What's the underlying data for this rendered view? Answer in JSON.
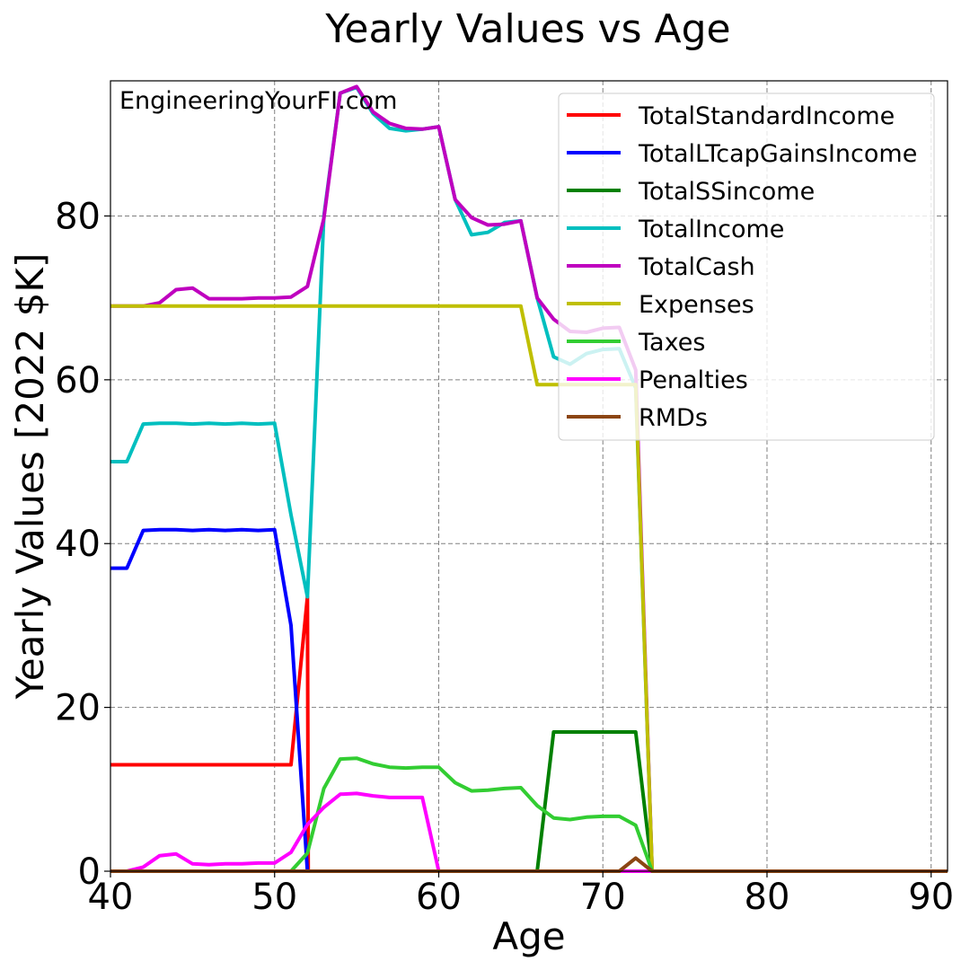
{
  "chart_data": {
    "type": "line",
    "title": "Yearly Values vs Age",
    "xlabel": "Age",
    "ylabel": "Yearly Values [2022 $K]",
    "watermark": "EngineeringYourFI.com",
    "xlim": [
      40,
      91
    ],
    "ylim": [
      0,
      96.5
    ],
    "x_ticks": [
      40,
      50,
      60,
      70,
      80,
      90
    ],
    "y_ticks": [
      0,
      20,
      40,
      60,
      80
    ],
    "grid": true,
    "legend_position": "upper right",
    "series": [
      {
        "name": "TotalStandardIncome",
        "color": "#ff0000",
        "x": [
          40,
          51,
          52,
          52.05,
          91
        ],
        "y": [
          13,
          13,
          33.5,
          0,
          0
        ]
      },
      {
        "name": "TotalLTcapGainsIncome",
        "color": "#0000ff",
        "x": [
          40,
          41,
          42,
          43,
          44,
          45,
          46,
          47,
          48,
          49,
          50,
          51,
          52,
          91
        ],
        "y": [
          37,
          37,
          41.6,
          41.7,
          41.7,
          41.6,
          41.7,
          41.6,
          41.7,
          41.6,
          41.7,
          30,
          0,
          0
        ]
      },
      {
        "name": "TotalSSincome",
        "color": "#008000",
        "x": [
          40,
          66,
          67,
          68,
          69,
          70,
          71,
          72,
          73,
          91
        ],
        "y": [
          0,
          0,
          17,
          17,
          17,
          17,
          17,
          17,
          0,
          0
        ]
      },
      {
        "name": "TotalIncome",
        "color": "#00bfbf",
        "x": [
          40,
          41,
          42,
          43,
          44,
          45,
          46,
          47,
          48,
          49,
          50,
          51,
          52,
          53,
          54,
          55,
          56,
          57,
          58,
          59,
          60,
          61,
          62,
          63,
          64,
          65,
          66,
          67,
          68,
          69,
          70,
          71,
          72,
          73,
          91
        ],
        "y": [
          50,
          50,
          54.6,
          54.7,
          54.7,
          54.6,
          54.7,
          54.6,
          54.7,
          54.6,
          54.7,
          43.5,
          33.5,
          80,
          95,
          95.7,
          92.5,
          90.7,
          90.4,
          90.6,
          90.9,
          82,
          77.7,
          78,
          79.2,
          79.4,
          70,
          62.8,
          61.9,
          63.2,
          63.7,
          63.8,
          59,
          0,
          0
        ]
      },
      {
        "name": "TotalCash",
        "color": "#bf00bf",
        "x": [
          40,
          41,
          42,
          43,
          44,
          45,
          46,
          47,
          48,
          49,
          50,
          51,
          52,
          53,
          54,
          55,
          56,
          57,
          58,
          59,
          60,
          61,
          62,
          63,
          64,
          65,
          66,
          67,
          68,
          69,
          70,
          71,
          72,
          73,
          91
        ],
        "y": [
          69,
          69,
          69,
          69.4,
          71,
          71.2,
          69.9,
          69.9,
          69.9,
          70,
          70,
          70.1,
          71.4,
          79.7,
          95,
          95.8,
          92.7,
          91.3,
          90.7,
          90.6,
          90.9,
          82,
          79.8,
          78.9,
          79,
          79.4,
          70,
          67.4,
          65.9,
          65.8,
          66.3,
          66.4,
          61.2,
          0,
          0
        ]
      },
      {
        "name": "Expenses",
        "color": "#bfbf00",
        "x": [
          40,
          65,
          66,
          72,
          73,
          91
        ],
        "y": [
          69,
          69,
          59.4,
          59.4,
          0,
          0
        ]
      },
      {
        "name": "Taxes",
        "color": "#32cd32",
        "x": [
          40,
          51,
          52,
          53,
          54,
          55,
          56,
          57,
          58,
          59,
          60,
          61,
          62,
          63,
          64,
          65,
          66,
          67,
          68,
          69,
          70,
          71,
          72,
          73,
          91
        ],
        "y": [
          0,
          0,
          2.2,
          10.1,
          13.7,
          13.8,
          13.1,
          12.7,
          12.6,
          12.7,
          12.7,
          10.8,
          9.8,
          9.9,
          10.1,
          10.2,
          8,
          6.5,
          6.3,
          6.6,
          6.7,
          6.7,
          5.6,
          0,
          0
        ]
      },
      {
        "name": "Penalties",
        "color": "#ff00ff",
        "x": [
          40,
          41,
          42,
          43,
          44,
          45,
          46,
          47,
          48,
          49,
          50,
          51,
          52,
          53,
          54,
          55,
          56,
          57,
          58,
          59,
          60,
          91
        ],
        "y": [
          0,
          0,
          0.5,
          1.9,
          2.1,
          0.9,
          0.8,
          0.9,
          0.9,
          1,
          1,
          2.3,
          5.7,
          7.8,
          9.4,
          9.5,
          9.2,
          9,
          9,
          9,
          0,
          0
        ]
      },
      {
        "name": "RMDs",
        "color": "#8b4513",
        "x": [
          40,
          71,
          72,
          73,
          91
        ],
        "y": [
          0,
          0,
          1.6,
          0,
          0
        ]
      }
    ]
  }
}
